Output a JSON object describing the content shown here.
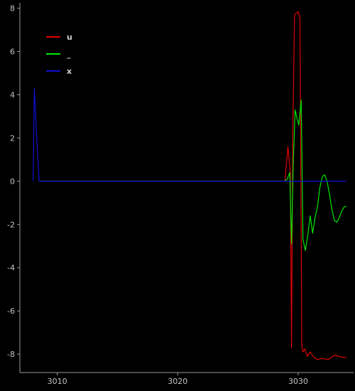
{
  "chart_data": {
    "type": "line",
    "title": "",
    "xlabel": "",
    "ylabel": "",
    "xlim": [
      3006.9,
      3034.6
    ],
    "ylim": [
      -8.85,
      8.25
    ],
    "xticks": [
      3010,
      3020,
      3030
    ],
    "yticks": [
      -8,
      -6,
      -4,
      -2,
      0,
      2,
      4,
      6,
      8
    ],
    "grid": false,
    "legend_position": "top-left",
    "background": "#000000",
    "axis_color": "#9a9a9a",
    "tick_label_color": "#c4c4c4",
    "series": [
      {
        "name": "u",
        "color": "#e00000",
        "x": [
          3008.5,
          3028.9,
          3029.15,
          3029.35,
          3029.45,
          3029.55,
          3029.7,
          3030.0,
          3030.15,
          3030.3,
          3030.4,
          3030.55,
          3030.75,
          3031.0,
          3031.3,
          3031.6,
          3032.0,
          3032.5,
          3033.0,
          3033.4,
          3033.8,
          3034.0
        ],
        "y": [
          0.0,
          0.0,
          1.6,
          0.4,
          -7.7,
          2.0,
          7.7,
          7.85,
          7.5,
          -7.6,
          -7.9,
          -7.75,
          -8.1,
          -7.9,
          -8.15,
          -8.25,
          -8.2,
          -8.25,
          -8.05,
          -8.1,
          -8.15,
          -8.15
        ]
      },
      {
        "name": "_",
        "color": "#00e600",
        "x": [
          3008.5,
          3028.9,
          3029.1,
          3029.3,
          3029.45,
          3029.6,
          3029.75,
          3029.9,
          3030.05,
          3030.25,
          3030.4,
          3030.6,
          3030.8,
          3031.0,
          3031.2,
          3031.4,
          3031.6,
          3031.8,
          3032.0,
          3032.2,
          3032.4,
          3032.6,
          3032.8,
          3033.0,
          3033.2,
          3033.4,
          3033.6,
          3033.8,
          3034.0
        ],
        "y": [
          0.0,
          0.0,
          0.1,
          0.4,
          -2.9,
          1.0,
          3.3,
          2.9,
          2.6,
          3.75,
          -2.7,
          -3.2,
          -2.5,
          -1.6,
          -2.4,
          -1.7,
          -1.2,
          -0.3,
          0.2,
          0.3,
          0.0,
          -0.6,
          -1.3,
          -1.8,
          -1.9,
          -1.7,
          -1.4,
          -1.2,
          -1.15
        ]
      },
      {
        "name": "x",
        "color": "#1010d0",
        "x": [
          3008.0,
          3008.1,
          3008.3,
          3008.5,
          3034.0
        ],
        "y": [
          0.0,
          4.3,
          2.0,
          0.0,
          0.0
        ]
      }
    ]
  }
}
